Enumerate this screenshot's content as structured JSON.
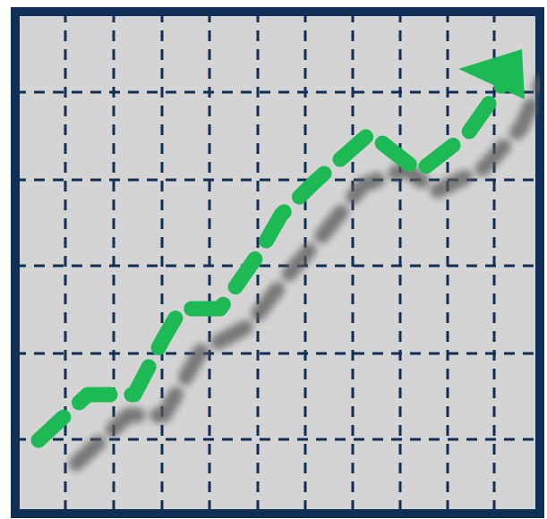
{
  "icon": {
    "name": "growth-chart-icon",
    "description": "",
    "colors": {
      "background": "#ffffff",
      "frame": "#0f2f57",
      "grid_fill": "#d4d4d4",
      "grid_lines": "#0f2f57",
      "trend_line": "#1db954",
      "shadow": "#5a5a5a"
    }
  }
}
